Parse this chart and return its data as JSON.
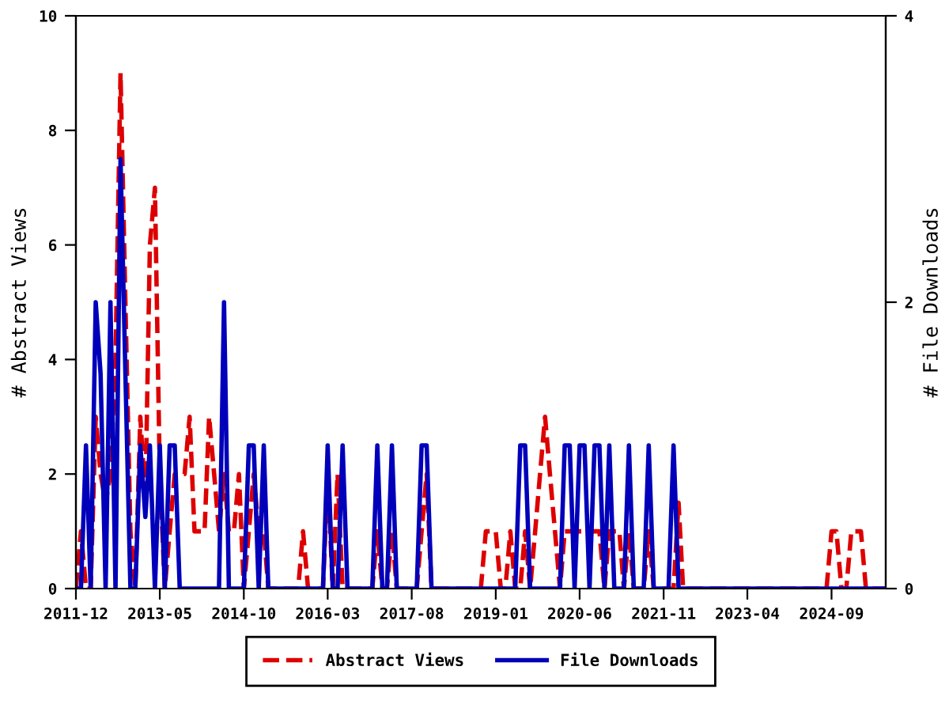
{
  "chart_data": {
    "type": "line",
    "ylabel": "# Abstract Views",
    "y2label": "# File Downloads",
    "x": [
      "2011-12",
      "2012-01",
      "2012-02",
      "2012-03",
      "2012-04",
      "2012-05",
      "2012-06",
      "2012-07",
      "2012-08",
      "2012-09",
      "2012-10",
      "2012-11",
      "2012-12",
      "2013-01",
      "2013-02",
      "2013-03",
      "2013-04",
      "2013-05",
      "2013-06",
      "2013-07",
      "2013-08",
      "2013-09",
      "2013-10",
      "2013-11",
      "2013-12",
      "2014-01",
      "2014-02",
      "2014-03",
      "2014-04",
      "2014-05",
      "2014-06",
      "2014-07",
      "2014-08",
      "2014-09",
      "2014-10",
      "2014-11",
      "2014-12",
      "2015-01",
      "2015-02",
      "2015-03",
      "2015-04",
      "2015-05",
      "2015-06",
      "2015-07",
      "2015-08",
      "2015-09",
      "2015-10",
      "2015-11",
      "2015-12",
      "2016-01",
      "2016-02",
      "2016-03",
      "2016-04",
      "2016-05",
      "2016-06",
      "2016-07",
      "2016-08",
      "2016-09",
      "2016-10",
      "2016-11",
      "2016-12",
      "2017-01",
      "2017-02",
      "2017-03",
      "2017-04",
      "2017-05",
      "2017-06",
      "2017-07",
      "2017-08",
      "2017-09",
      "2017-10",
      "2017-11",
      "2017-12",
      "2018-01",
      "2018-02",
      "2018-03",
      "2018-04",
      "2018-05",
      "2018-06",
      "2018-07",
      "2018-08",
      "2018-09",
      "2018-10",
      "2018-11",
      "2018-12",
      "2019-01",
      "2019-02",
      "2019-03",
      "2019-04",
      "2019-05",
      "2019-06",
      "2019-07",
      "2019-08",
      "2019-09",
      "2019-10",
      "2019-11",
      "2019-12",
      "2020-01",
      "2020-02",
      "2020-03",
      "2020-04",
      "2020-05",
      "2020-06",
      "2020-07",
      "2020-08",
      "2020-09",
      "2020-10",
      "2020-11",
      "2020-12",
      "2021-01",
      "2021-02",
      "2021-03",
      "2021-04",
      "2021-05",
      "2021-06",
      "2021-07",
      "2021-08",
      "2021-09",
      "2021-10",
      "2021-11",
      "2021-12",
      "2022-01",
      "2022-02",
      "2022-03",
      "2022-04",
      "2022-05",
      "2022-06",
      "2022-07",
      "2022-08",
      "2022-09",
      "2022-10",
      "2022-11",
      "2022-12",
      "2023-01",
      "2023-02",
      "2023-03",
      "2023-04",
      "2023-05",
      "2023-06",
      "2023-07",
      "2023-08",
      "2023-09",
      "2023-10",
      "2023-11",
      "2023-12",
      "2024-01",
      "2024-02",
      "2024-03",
      "2024-04",
      "2024-05",
      "2024-06",
      "2024-07",
      "2024-08",
      "2024-09",
      "2024-10",
      "2024-11",
      "2024-12",
      "2025-01",
      "2025-02",
      "2025-03",
      "2025-04",
      "2025-05",
      "2025-06",
      "2025-07",
      "2025-08"
    ],
    "series": [
      {
        "name": "Abstract Views",
        "color": "#dd0000",
        "line_style": "dashed",
        "values": [
          0,
          1,
          0,
          0,
          3,
          2,
          1.5,
          2,
          4,
          9,
          5,
          1,
          0,
          3,
          1.5,
          6,
          7,
          2,
          0,
          1,
          2,
          2,
          2,
          3,
          1,
          1,
          1,
          3,
          2,
          1,
          2,
          1,
          1,
          2,
          0,
          1,
          2,
          1,
          1,
          0,
          0,
          0,
          0,
          0,
          0,
          0,
          1,
          0,
          0,
          0,
          0,
          2,
          0,
          2,
          0,
          0,
          0,
          0,
          0,
          0,
          0,
          1,
          0,
          0,
          1,
          0,
          0,
          0,
          0,
          0,
          1,
          2,
          0,
          0,
          0,
          0,
          0,
          0,
          0,
          0,
          0,
          0,
          0,
          1,
          1,
          1,
          0,
          0,
          1,
          0,
          0,
          1,
          0,
          1,
          2,
          3,
          2,
          1,
          0,
          1,
          1,
          1,
          1,
          1,
          1,
          1,
          1,
          0,
          1,
          1,
          1,
          0,
          1,
          0,
          0,
          0,
          1,
          0,
          0,
          0,
          0,
          0,
          1.5,
          0,
          0,
          0,
          0,
          0,
          0,
          0,
          0,
          0,
          0,
          0,
          0,
          0,
          0,
          0,
          0,
          0,
          0,
          0,
          0,
          0,
          0,
          0,
          0,
          0,
          0,
          0,
          0,
          0,
          0,
          1,
          1,
          0,
          0,
          1,
          1,
          1,
          0,
          0,
          0,
          0,
          0
        ]
      },
      {
        "name": "File Downloads",
        "color": "#0000bb",
        "line_style": "solid",
        "axis": "y2",
        "values": [
          0,
          0,
          1,
          0,
          2,
          1.5,
          0,
          2,
          0,
          3,
          1.5,
          0,
          0,
          1,
          0.5,
          1,
          0,
          1,
          0,
          1,
          1,
          0,
          0,
          0,
          0,
          0,
          0,
          0,
          0,
          0,
          2,
          0,
          0,
          0,
          0,
          1,
          1,
          0,
          1,
          0,
          0,
          0,
          0,
          0,
          0,
          0,
          0,
          0,
          0,
          0,
          0,
          1,
          0,
          0,
          1,
          0,
          0,
          0,
          0,
          0,
          0,
          1,
          0,
          0,
          1,
          0,
          0,
          0,
          0,
          0,
          1,
          1,
          0,
          0,
          0,
          0,
          0,
          0,
          0,
          0,
          0,
          0,
          0,
          0,
          0,
          0,
          0,
          0,
          0,
          0,
          1,
          1,
          0,
          0,
          0,
          0,
          0,
          0,
          0,
          1,
          1,
          0,
          1,
          1,
          0,
          1,
          1,
          0,
          1,
          0,
          0,
          0,
          1,
          0,
          0,
          0,
          1,
          0,
          0,
          0,
          0,
          1,
          0,
          0,
          0,
          0,
          0,
          0,
          0,
          0,
          0,
          0,
          0,
          0,
          0,
          0,
          0,
          0,
          0,
          0,
          0,
          0,
          0,
          0,
          0,
          0,
          0,
          0,
          0,
          0,
          0,
          0,
          0,
          0,
          0,
          0,
          0,
          0,
          0,
          0,
          0,
          0,
          0,
          0,
          0
        ]
      }
    ],
    "xlim": [
      "2011-12",
      "2025-08"
    ],
    "xticks": [
      "2011-12",
      "2013-05",
      "2014-10",
      "2016-03",
      "2017-08",
      "2019-01",
      "2020-06",
      "2021-11",
      "2023-04",
      "2024-09"
    ],
    "ylim": [
      0,
      10
    ],
    "yticks": [
      0,
      2,
      4,
      6,
      8,
      10
    ],
    "y2lim": [
      0,
      4
    ],
    "y2ticks": [
      0,
      2,
      4
    ],
    "legend": "bottom"
  }
}
